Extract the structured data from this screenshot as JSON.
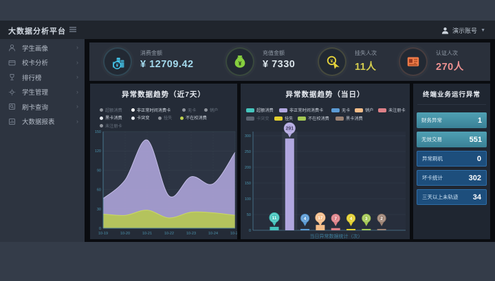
{
  "header": {
    "logo": "大数据分析平台",
    "user": {
      "name": "演示账号"
    }
  },
  "sidebar": {
    "items": [
      {
        "label": "学生画像",
        "icon": "user-icon"
      },
      {
        "label": "校卡分析",
        "icon": "card-icon"
      },
      {
        "label": "排行榜",
        "icon": "trophy-icon"
      },
      {
        "label": "学生管理",
        "icon": "gear-icon"
      },
      {
        "label": "刷卡查询",
        "icon": "search-doc-icon"
      },
      {
        "label": "大数据报表",
        "icon": "report-icon"
      }
    ]
  },
  "kpis": [
    {
      "label": "消费金额",
      "value": "¥ 12709.42",
      "icon": "coins-icon",
      "accent": "#43c3e8",
      "value_color": "#a3d9ec"
    },
    {
      "label": "充值金额",
      "value": "¥ 7330",
      "icon": "moneybag-icon",
      "accent": "#86cf3f",
      "value_color": "#d9e2e8"
    },
    {
      "label": "挂失人次",
      "value": "11人",
      "icon": "click-icon",
      "accent": "#e4d23b",
      "value_color": "#d5ce4e"
    },
    {
      "label": "认证人次",
      "value": "270人",
      "icon": "idcard-icon",
      "accent": "#ed7a48",
      "value_color": "#ee9191"
    }
  ],
  "chart_data": [
    {
      "type": "area",
      "title": "异常数据趋势（近7天）",
      "x": [
        "10-19",
        "10-20",
        "10-21",
        "10-22",
        "10-23",
        "10-24",
        "10-25"
      ],
      "ylim": [
        0,
        150
      ],
      "yticks": [
        0,
        30,
        60,
        90,
        120,
        150
      ],
      "grid": true,
      "legend_position": "top",
      "legend_rows": [
        [
          {
            "name": "超额消费",
            "dot": "#e9edf2",
            "dim": true
          },
          {
            "name": "非正常时间消费卡",
            "dot": "#ffffff",
            "dim": false
          },
          {
            "name": "无卡",
            "dot": "#e9edf2",
            "dim": true
          },
          {
            "name": "销户",
            "dot": "#e9edf2",
            "dim": true
          }
        ],
        [
          {
            "name": "黑卡消费",
            "dot": "#e9edf2",
            "dim": false
          },
          {
            "name": "卡突变",
            "dot": "#e9edf2",
            "dim": false
          },
          {
            "name": "挂失",
            "dot": "#e9edf2",
            "dim": true
          },
          {
            "name": "不在校消费",
            "dot": "#c0d24e",
            "dim": false
          }
        ],
        [
          {
            "name": "未注册卡",
            "dot": "#e9edf2",
            "dim": true
          }
        ]
      ],
      "series": [
        {
          "name": "非正常时间消费卡",
          "color": "#a9a1d5",
          "line": "#c3bce6",
          "values": [
            46,
            75,
            137,
            50,
            80,
            69,
            118
          ]
        },
        {
          "name": "不在校消费",
          "color": "#b5c754",
          "line": "#cbd964",
          "values": [
            22,
            20,
            28,
            16,
            25,
            24,
            20
          ]
        }
      ]
    },
    {
      "type": "bar",
      "title": "异常数据趋势（当日）",
      "caption": "当日异常数据统计（次）",
      "ylim": [
        0,
        300
      ],
      "yticks": [
        0,
        50,
        100,
        150,
        200,
        250,
        300
      ],
      "legend_rows": [
        [
          {
            "name": "超额消费",
            "color": "#45c5bd"
          },
          {
            "name": "非正常时间消费卡",
            "color": "#b1a7e0"
          },
          {
            "name": "无卡",
            "color": "#5b9bd5"
          },
          {
            "name": "销户",
            "color": "#f5bd89"
          },
          {
            "name": "未注册卡",
            "color": "#dd8087"
          }
        ],
        [
          {
            "name": "卡突变",
            "color": "#6e7681",
            "deselected": true
          },
          {
            "name": "挂失",
            "color": "#e3cf2e"
          },
          {
            "name": "不在校消费",
            "color": "#a3c853"
          },
          {
            "name": "黑卡消费",
            "color": "#9c8273"
          }
        ]
      ],
      "bars": [
        {
          "name": "超额消费",
          "value": 11,
          "color": "#45c5bd",
          "balloon_text": "#ffffff"
        },
        {
          "name": "非正常时间消费卡",
          "value": 291,
          "color": "#b1a7e0",
          "balloon_text": "#4a4466"
        },
        {
          "name": "无卡",
          "value": 4,
          "color": "#5b9bd5",
          "balloon_text": "#ffffff"
        },
        {
          "name": "销户",
          "value": 17,
          "color": "#f5bd89",
          "balloon_text": "#ffffff"
        },
        {
          "name": "未注册卡",
          "value": 7,
          "color": "#dd8087",
          "balloon_text": "#ffffff"
        },
        {
          "name": "挂失",
          "value": 4,
          "color": "#e3cf2e",
          "balloon_text": "#ffffff"
        },
        {
          "name": "不在校消费",
          "value": 3,
          "color": "#a3c853",
          "balloon_text": "#ffffff"
        },
        {
          "name": "黑卡消费",
          "value": 2,
          "color": "#9c8273",
          "balloon_text": "#ffffff"
        }
      ]
    }
  ],
  "terminal_panel": {
    "title": "终端业务运行异常",
    "rows": [
      {
        "label": "财务异常",
        "value": "1",
        "style": "teal"
      },
      {
        "label": "无效交易",
        "value": "551",
        "style": "teal"
      },
      {
        "label": "异常刷机",
        "value": "0",
        "style": "blue"
      },
      {
        "label": "坏卡统计",
        "value": "302",
        "style": "blue"
      },
      {
        "label": "三天以上未轨迹",
        "value": "34",
        "style": "blue"
      }
    ]
  }
}
